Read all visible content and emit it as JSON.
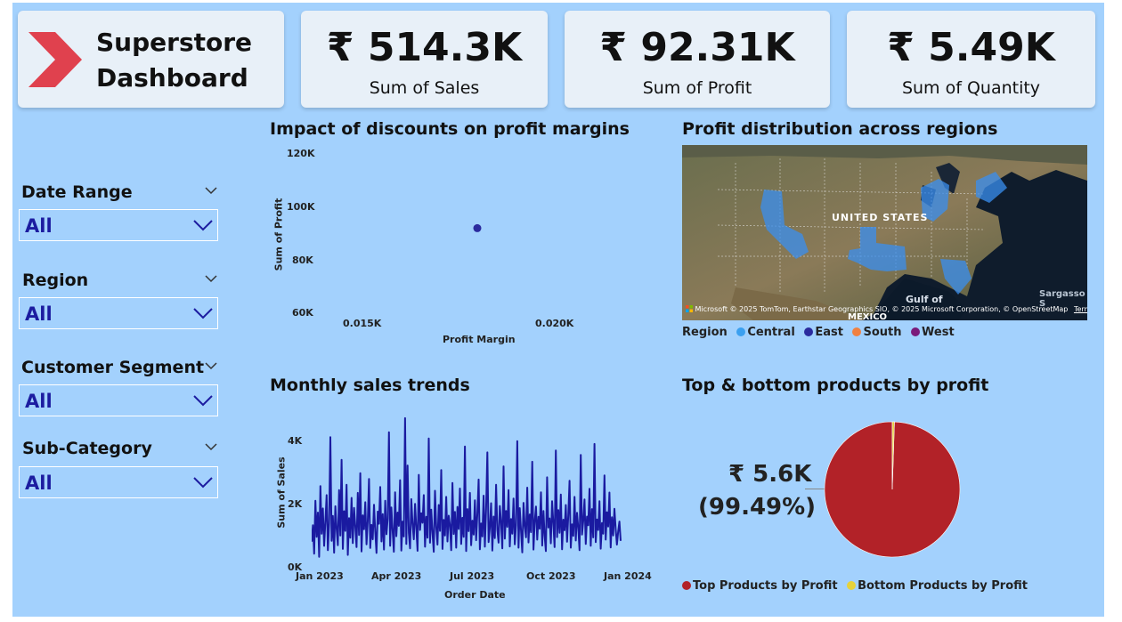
{
  "header": {
    "title_line1": "Superstore",
    "title_line2": "Dashboard",
    "logo_icon": "chevron-right-logo-icon",
    "logo_color": "#e0414e"
  },
  "kpis": [
    {
      "value": "₹ 514.3K",
      "label": "Sum of Sales"
    },
    {
      "value": "₹ 92.31K",
      "label": "Sum of Profit"
    },
    {
      "value": "₹ 5.49K",
      "label": "Sum of Quantity"
    }
  ],
  "filters": [
    {
      "label": "Date Range",
      "value": "All"
    },
    {
      "label": "Region",
      "value": "All"
    },
    {
      "label": "Customer Segment",
      "value": "All"
    },
    {
      "label": "Sub-Category",
      "value": "All"
    }
  ],
  "scatter": {
    "title": "Impact of discounts on profit margins",
    "xlabel": "Profit Margin",
    "ylabel": "Sum of Profit",
    "yticks": [
      "120K",
      "100K",
      "80K",
      "60K"
    ],
    "xticks": [
      "0.015K",
      "0.020K"
    ]
  },
  "map": {
    "title": "Profit distribution across regions",
    "country_label": "UNITED STATES",
    "gulf_label": "Gulf of",
    "mexico_label": "MEXICO",
    "sargasso_label": "Sargasso S",
    "brand_label": "Microsoft",
    "attribution": "© 2025 TomTom, Earthstar Geographics SIO, © 2025 Microsoft Corporation, © OpenStreetMap",
    "terms": "Terms",
    "legend_title": "Region",
    "legend": [
      {
        "name": "Central",
        "color": "#3ba0f0"
      },
      {
        "name": "East",
        "color": "#2b2b9e"
      },
      {
        "name": "South",
        "color": "#f08040"
      },
      {
        "name": "West",
        "color": "#7a1a7a"
      }
    ]
  },
  "line": {
    "title": "Monthly sales trends",
    "xlabel": "Order Date",
    "ylabel": "Sum of Sales",
    "yticks": [
      "4K",
      "2K",
      "0K"
    ],
    "xticks": [
      "Jan 2023",
      "Apr 2023",
      "Jul 2023",
      "Oct 2023",
      "Jan 2024"
    ]
  },
  "pie": {
    "title": "Top & bottom products by profit",
    "data_label_value": "₹ 5.6K",
    "data_label_pct": "(99.49%)",
    "legend": [
      {
        "name": "Top Products by Profit",
        "color": "#b22228"
      },
      {
        "name": "Bottom Products by Profit",
        "color": "#e6d23a"
      }
    ]
  },
  "chart_data": [
    {
      "type": "scatter",
      "title": "Impact of discounts on profit margins",
      "xlabel": "Profit Margin",
      "ylabel": "Sum of Profit",
      "xlim": [
        0.012,
        0.022
      ],
      "ylim": [
        55000,
        125000
      ],
      "points": [
        {
          "x": 0.0175,
          "y": 92310
        }
      ]
    },
    {
      "type": "line",
      "title": "Monthly sales trends",
      "xlabel": "Order Date",
      "ylabel": "Sum of Sales",
      "x_start": "2023-01-01",
      "x_end": "2023-12-31",
      "ylim": [
        0,
        5000
      ],
      "color": "#1a1aa0",
      "values": [
        890,
        1420,
        510,
        2210,
        1050,
        1830,
        410,
        2680,
        1150,
        1960,
        760,
        1540,
        2390,
        620,
        1480,
        4250,
        920,
        1720,
        540,
        2030,
        1310,
        780,
        2550,
        1090,
        3520,
        660,
        1870,
        1240,
        2720,
        470,
        1650,
        1020,
        2300,
        850,
        1980,
        1380,
        720,
        2460,
        1110,
        3090,
        580,
        1740,
        1290,
        2160,
        810,
        1560,
        2910,
        690,
        1430,
        970,
        2080,
        1220,
        530,
        1860,
        1470,
        2650,
        900,
        1780,
        640,
        2210,
        1130,
        1630,
        4410,
        760,
        1990,
        1250,
        570,
        2480,
        1070,
        1830,
        1400,
        2870,
        610,
        1540,
        1060,
        4860,
        820,
        3340,
        1180,
        680,
        2260,
        1460,
        970,
        2110,
        1330,
        600,
        3040,
        1270,
        1810,
        1500,
        2390,
        730,
        1690,
        1020,
        4210,
        860,
        1920,
        1170,
        570,
        2530,
        1360,
        800,
        2070,
        1240,
        3190,
        660,
        1590,
        1090,
        2330,
        900,
        1730,
        1420,
        620,
        2780,
        1140,
        1850,
        700,
        2010,
        1300,
        2600,
        820,
        1660,
        1050,
        3950,
        590,
        1940,
        1230,
        2460,
        780,
        1570,
        1120,
        2220,
        940,
        1800,
        2890,
        650,
        1480,
        1060,
        2370,
        730,
        1950,
        3760,
        880,
        1350,
        2130,
        610,
        1700,
        1010,
        2720,
        1280,
        860,
        2040,
        1510,
        680,
        3310,
        990,
        1880,
        1370,
        2550,
        740,
        1620,
        1150,
        2280,
        810,
        1430,
        4120,
        700,
        1970,
        1250,
        550,
        2140,
        1390,
        1030,
        2630,
        870,
        1770,
        1200,
        3460,
        640,
        1540,
        2020,
        960,
        1690,
        1310,
        2480,
        770,
        1880,
        1090,
        590,
        2960,
        1350,
        1640,
        840,
        2190,
        1480,
        720,
        3820,
        1040,
        1910,
        1180,
        2410,
        650,
        1600,
        1260,
        2070,
        890,
        1750,
        2850,
        700,
        1450,
        1080,
        2330,
        930,
        1820,
        1340,
        620,
        3680,
        1120,
        1560,
        2250,
        820,
        1700,
        1420,
        2590,
        760,
        1940,
        1030,
        4030,
        880,
        1610,
        1270,
        2190,
        670,
        1490,
        1150,
        3020,
        960,
        1840,
        1380,
        2470,
        710,
        1680,
        1090,
        1950,
        1310,
        800,
        1220,
        1540,
        920
      ]
    },
    {
      "type": "pie",
      "title": "Top & bottom products by profit",
      "slices": [
        {
          "label": "Top Products by Profit",
          "value": 99.49,
          "color": "#b22228"
        },
        {
          "label": "Bottom Products by Profit",
          "value": 0.51,
          "color": "#e6d23a"
        }
      ]
    }
  ]
}
